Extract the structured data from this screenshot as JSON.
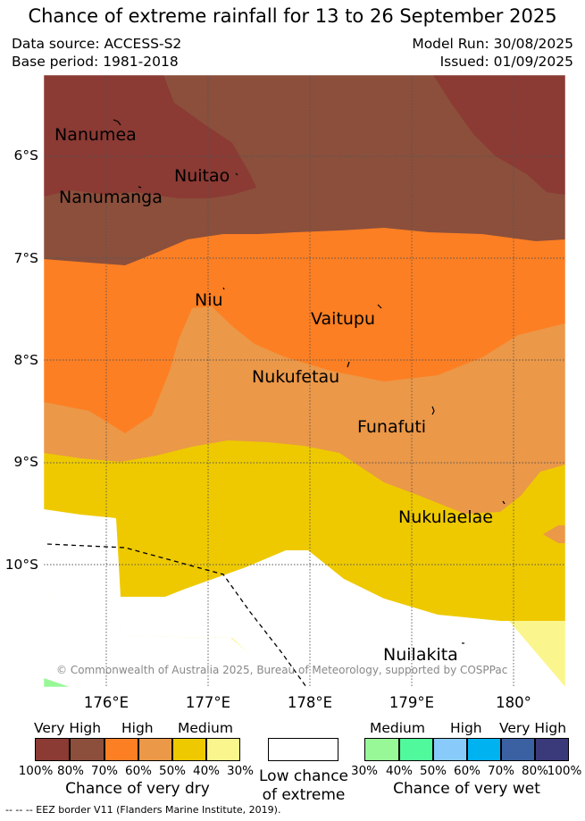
{
  "title": "Chance of extreme rainfall for 13 to 26 September 2025",
  "header": {
    "data_source": "Data source: ACCESS-S2",
    "base_period": "Base period: 1981-2018",
    "model_run": "Model Run: 30/08/2025",
    "issued": "Issued: 01/09/2025"
  },
  "map": {
    "places": [
      "Nanumea",
      "Nuitao",
      "Nanumanga",
      "Niu",
      "Vaitupu",
      "Nukufetau",
      "Funafuti",
      "Nukulaelae",
      "Nuilakita"
    ],
    "lat_labels": [
      "6°S",
      "7°S",
      "8°S",
      "9°S",
      "10°S"
    ],
    "lon_labels": [
      "176°E",
      "177°E",
      "178°E",
      "179°E",
      "180°"
    ],
    "copyright": "© Commonwealth of Australia 2025, Bureau of Meteorology, supported by COSPPac"
  },
  "legend": {
    "dry": {
      "levels": [
        "Very High",
        "High",
        "Medium"
      ],
      "percents": [
        "100%",
        "80%",
        "70%",
        "60%",
        "50%",
        "40%",
        "30%"
      ],
      "colors": [
        "#8b3a34",
        "#8b4f3c",
        "#fd7f23",
        "#eb9848",
        "#eec900",
        "#fbf58e"
      ],
      "caption": "Chance of very dry"
    },
    "low": {
      "caption_line1": "Low chance",
      "caption_line2": "of extreme",
      "color": "#ffffff"
    },
    "wet": {
      "levels": [
        "Medium",
        "High",
        "Very High"
      ],
      "percents": [
        "30%",
        "40%",
        "50%",
        "60%",
        "70%",
        "80%",
        "100%"
      ],
      "colors": [
        "#98f898",
        "#50fa9c",
        "#88cbfa",
        "#00b2f0",
        "#3b61a3",
        "#3a3a7a"
      ],
      "caption": "Chance of very wet"
    }
  },
  "footer": "--  --  -- EEZ border V11 (Flanders Marine Institute, 2019)."
}
